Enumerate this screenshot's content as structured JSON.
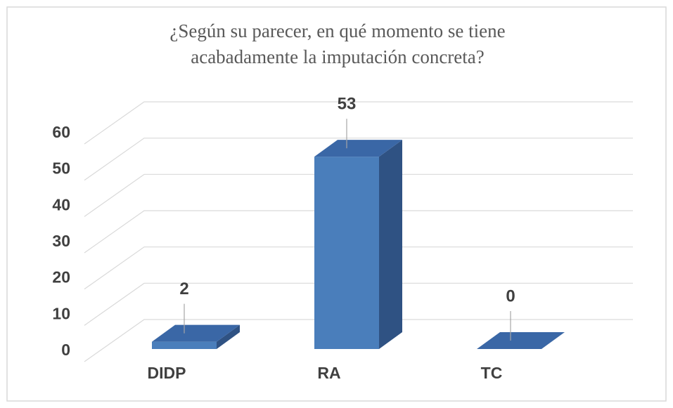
{
  "chart_data": {
    "type": "bar3d",
    "title": [
      "¿Según su parecer, en qué momento se tiene",
      "acabadamente la imputación concreta?"
    ],
    "categories": [
      "DIDP",
      "RA",
      "TC"
    ],
    "values": [
      2,
      53,
      0
    ],
    "color": "#4a7ebb",
    "ylim": [
      0,
      60
    ],
    "yticks": [
      0,
      10,
      20,
      30,
      40,
      50,
      60
    ],
    "grid": true
  }
}
